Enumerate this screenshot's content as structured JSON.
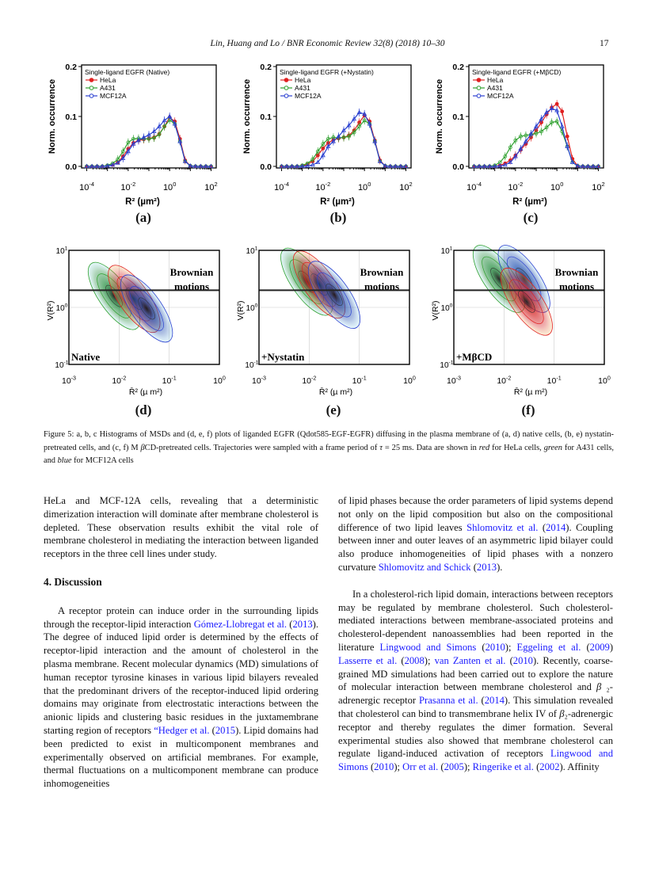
{
  "header": {
    "running_title": "Lin, Huang and Lo / BNR Economic Review 32(8) (2018) 10–30",
    "page_number": "17"
  },
  "colors": {
    "hela": "#e02020",
    "a431": "#2ea02e",
    "mcf12a": "#2a40d0",
    "link": "#1a1aff"
  },
  "chart_data": [
    {
      "type": "line",
      "panel": "(a)",
      "title": "Single-ligand EGFR (Native)",
      "xlabel": "R² (µm²)",
      "ylabel": "Norm. occurrence",
      "xscale": "log",
      "xlim_log10": [
        -4,
        2
      ],
      "ylim": [
        0,
        0.2
      ],
      "x_ticks": [
        {
          "base": "10",
          "exp": "-4"
        },
        {
          "base": "10",
          "exp": "-2"
        },
        {
          "base": "10",
          "exp": "0"
        },
        {
          "base": "10",
          "exp": "2"
        }
      ],
      "y_ticks": [
        "0.0",
        "0.1",
        "0.2"
      ],
      "x_log10": [
        -4,
        -3.75,
        -3.5,
        -3.25,
        -3,
        -2.75,
        -2.5,
        -2.25,
        -2,
        -1.75,
        -1.5,
        -1.25,
        -1,
        -0.75,
        -0.5,
        -0.25,
        0,
        0.25,
        0.5,
        0.75,
        1,
        1.25,
        1.5,
        1.75,
        2
      ],
      "series": [
        {
          "name": "HeLa",
          "marker": "filled-circle",
          "values": [
            0,
            0,
            0,
            0,
            0.001,
            0.003,
            0.008,
            0.02,
            0.035,
            0.047,
            0.052,
            0.054,
            0.056,
            0.058,
            0.065,
            0.08,
            0.098,
            0.09,
            0.055,
            0.012,
            0.001,
            0,
            0,
            0,
            0
          ]
        },
        {
          "name": "A431",
          "marker": "open-circle",
          "values": [
            0,
            0,
            0,
            0,
            0.002,
            0.006,
            0.014,
            0.03,
            0.048,
            0.055,
            0.056,
            0.055,
            0.055,
            0.057,
            0.064,
            0.08,
            0.093,
            0.085,
            0.05,
            0.01,
            0.001,
            0,
            0,
            0,
            0
          ]
        },
        {
          "name": "MCF12A",
          "marker": "open-triangle",
          "values": [
            0,
            0,
            0,
            0,
            0.001,
            0.003,
            0.007,
            0.016,
            0.03,
            0.045,
            0.052,
            0.058,
            0.063,
            0.07,
            0.08,
            0.092,
            0.1,
            0.085,
            0.05,
            0.01,
            0.001,
            0,
            0,
            0,
            0
          ]
        }
      ]
    },
    {
      "type": "line",
      "panel": "(b)",
      "title": "Single-ligand EGFR (+Nystatin)",
      "xlabel": "R² (µm²)",
      "ylabel": "Norm. occurrence",
      "xscale": "log",
      "xlim_log10": [
        -4,
        2
      ],
      "ylim": [
        0,
        0.2
      ],
      "x_ticks": [
        {
          "base": "10",
          "exp": "-4"
        },
        {
          "base": "10",
          "exp": "-2"
        },
        {
          "base": "10",
          "exp": "0"
        },
        {
          "base": "10",
          "exp": "2"
        }
      ],
      "y_ticks": [
        "0.0",
        "0.1",
        "0.2"
      ],
      "x_log10": [
        -4,
        -3.75,
        -3.5,
        -3.25,
        -3,
        -2.75,
        -2.5,
        -2.25,
        -2,
        -1.75,
        -1.5,
        -1.25,
        -1,
        -0.75,
        -0.5,
        -0.25,
        0,
        0.25,
        0.5,
        0.75,
        1,
        1.25,
        1.5,
        1.75,
        2
      ],
      "series": [
        {
          "name": "HeLa",
          "marker": "filled-circle",
          "values": [
            0,
            0,
            0,
            0,
            0.001,
            0.004,
            0.01,
            0.022,
            0.036,
            0.047,
            0.053,
            0.056,
            0.058,
            0.062,
            0.072,
            0.088,
            0.102,
            0.09,
            0.052,
            0.012,
            0.001,
            0,
            0,
            0,
            0
          ]
        },
        {
          "name": "A431",
          "marker": "open-circle",
          "values": [
            0,
            0,
            0,
            0,
            0.002,
            0.006,
            0.014,
            0.03,
            0.045,
            0.055,
            0.058,
            0.057,
            0.058,
            0.06,
            0.068,
            0.08,
            0.092,
            0.085,
            0.05,
            0.01,
            0.001,
            0,
            0,
            0,
            0
          ]
        },
        {
          "name": "MCF12A",
          "marker": "open-triangle",
          "values": [
            0,
            0,
            0,
            0,
            0,
            0.001,
            0.003,
            0.008,
            0.022,
            0.04,
            0.05,
            0.06,
            0.072,
            0.082,
            0.095,
            0.108,
            0.105,
            0.085,
            0.05,
            0.01,
            0.001,
            0,
            0,
            0,
            0
          ]
        }
      ]
    },
    {
      "type": "line",
      "panel": "(c)",
      "title": "Single-ligand EGFR (+MβCD)",
      "xlabel": "R² (µm²)",
      "ylabel": "Norm. occurrence",
      "xscale": "log",
      "xlim_log10": [
        -4,
        2
      ],
      "ylim": [
        0,
        0.2
      ],
      "x_ticks": [
        {
          "base": "10",
          "exp": "-4"
        },
        {
          "base": "10",
          "exp": "-2"
        },
        {
          "base": "10",
          "exp": "0"
        },
        {
          "base": "10",
          "exp": "2"
        }
      ],
      "y_ticks": [
        "0.0",
        "0.1",
        "0.2"
      ],
      "x_log10": [
        -4,
        -3.75,
        -3.5,
        -3.25,
        -3,
        -2.75,
        -2.5,
        -2.25,
        -2,
        -1.75,
        -1.5,
        -1.25,
        -1,
        -0.75,
        -0.5,
        -0.25,
        0,
        0.25,
        0.5,
        0.75,
        1,
        1.25,
        1.5,
        1.75,
        2
      ],
      "series": [
        {
          "name": "HeLa",
          "marker": "filled-circle",
          "values": [
            0,
            0,
            0,
            0,
            0,
            0.002,
            0.006,
            0.012,
            0.022,
            0.033,
            0.045,
            0.058,
            0.072,
            0.088,
            0.104,
            0.118,
            0.125,
            0.11,
            0.06,
            0.015,
            0.001,
            0,
            0,
            0,
            0
          ]
        },
        {
          "name": "A431",
          "marker": "open-circle",
          "values": [
            0,
            0,
            0,
            0,
            0.002,
            0.008,
            0.02,
            0.038,
            0.052,
            0.06,
            0.062,
            0.064,
            0.066,
            0.07,
            0.078,
            0.088,
            0.09,
            0.07,
            0.04,
            0.008,
            0.001,
            0,
            0,
            0,
            0
          ]
        },
        {
          "name": "MCF12A",
          "marker": "open-triangle",
          "values": [
            0,
            0,
            0,
            0,
            0,
            0.001,
            0.003,
            0.008,
            0.02,
            0.035,
            0.05,
            0.065,
            0.08,
            0.095,
            0.108,
            0.116,
            0.112,
            0.08,
            0.04,
            0.008,
            0.001,
            0,
            0,
            0,
            0
          ]
        }
      ]
    },
    {
      "type": "heatmap",
      "panel": "(d)",
      "condition": "Native",
      "annotation": "Brownian motions",
      "xlabel": "R̄² (µ m²)",
      "ylabel": "V(R²)",
      "xlim_log10": [
        -3,
        0
      ],
      "ylim_log10": [
        -1,
        1
      ],
      "brownian_line_log10": 0.3,
      "x_ticks": [
        {
          "base": "10",
          "exp": "-3"
        },
        {
          "base": "10",
          "exp": "-2"
        },
        {
          "base": "10",
          "exp": "-1"
        },
        {
          "base": "10",
          "exp": "0"
        }
      ],
      "y_ticks": [
        {
          "base": "10",
          "exp": "-1"
        },
        {
          "base": "10",
          "exp": "0"
        },
        {
          "base": "10",
          "exp": "1"
        }
      ],
      "density_peaks": [
        {
          "name": "A431",
          "x_log10": -2.1,
          "y_log10": 0.2
        },
        {
          "name": "HeLa",
          "x_log10": -1.7,
          "y_log10": 0.15
        },
        {
          "name": "MCF12A",
          "x_log10": -1.45,
          "y_log10": -0.02
        }
      ]
    },
    {
      "type": "heatmap",
      "panel": "(e)",
      "condition": "+Nystatin",
      "annotation": "Brownian motions",
      "xlabel": "R̄² (µ m²)",
      "ylabel": "V(R²)",
      "xlim_log10": [
        -3,
        0
      ],
      "ylim_log10": [
        -1,
        1
      ],
      "brownian_line_log10": 0.3,
      "x_ticks": [
        {
          "base": "10",
          "exp": "-3"
        },
        {
          "base": "10",
          "exp": "-2"
        },
        {
          "base": "10",
          "exp": "-1"
        },
        {
          "base": "10",
          "exp": "0"
        }
      ],
      "y_ticks": [
        {
          "base": "10",
          "exp": "-1"
        },
        {
          "base": "10",
          "exp": "0"
        },
        {
          "base": "10",
          "exp": "1"
        }
      ],
      "density_peaks": [
        {
          "name": "A431",
          "x_log10": -2.05,
          "y_log10": 0.45
        },
        {
          "name": "HeLa",
          "x_log10": -1.8,
          "y_log10": 0.4
        },
        {
          "name": "MCF12A",
          "x_log10": -1.5,
          "y_log10": 0.22
        }
      ]
    },
    {
      "type": "heatmap",
      "panel": "(f)",
      "condition": "+MβCD",
      "annotation": "Brownian motions",
      "xlabel": "R̄² (µ m²)",
      "ylabel": "V(R²)",
      "xlim_log10": [
        -3,
        0
      ],
      "ylim_log10": [
        -1,
        1
      ],
      "brownian_line_log10": 0.3,
      "x_ticks": [
        {
          "base": "10",
          "exp": "-3"
        },
        {
          "base": "10",
          "exp": "-2"
        },
        {
          "base": "10",
          "exp": "-1"
        },
        {
          "base": "10",
          "exp": "0"
        }
      ],
      "y_ticks": [
        {
          "base": "10",
          "exp": "-1"
        },
        {
          "base": "10",
          "exp": "0"
        },
        {
          "base": "10",
          "exp": "1"
        }
      ],
      "density_peaks": [
        {
          "name": "A431",
          "x_log10": -2.1,
          "y_log10": 0.5
        },
        {
          "name": "MCF12A",
          "x_log10": -1.6,
          "y_log10": 0.5
        },
        {
          "name": "HeLa",
          "x_log10": -1.55,
          "y_log10": 0.1
        }
      ]
    }
  ],
  "caption": [
    {
      "t": "Figure 5: a, b, c Histograms of MSDs and (d, e, f) plots of liganded EGFR (Qdot585-EGF-EGFR) diffusing in the plasma membrane of (a, d) native cells, (b, e) nystatin-pretreated cells, and (c, f) M "
    },
    {
      "t": "β",
      "i": true
    },
    {
      "t": "CD-pretreated cells. Trajectories were sampled with a frame period of "
    },
    {
      "t": "τ",
      "i": true
    },
    {
      "t": " = 25 ms. Data are shown in "
    },
    {
      "t": "red",
      "i": true
    },
    {
      "t": " for HeLa cells, "
    },
    {
      "t": "green",
      "i": true
    },
    {
      "t": " for A431 cells, and "
    },
    {
      "t": "blue",
      "i": true
    },
    {
      "t": " for MCF12A cells"
    }
  ],
  "left_column": {
    "para1": [
      {
        "t": "HeLa and MCF-12A cells, revealing that a deterministic dimerization interaction will dominate after membrane cholesterol is depleted.  These observation results exhibit the vital role of membrane cholesterol in mediating the interaction between liganded receptors in the three cell lines under study."
      }
    ],
    "section_heading": "4.  Discussion",
    "para2": [
      {
        "t": "A receptor protein can induce order in the surrounding lipids through the receptor-lipid interaction "
      },
      {
        "t": "Gómez-Llobregat et al.",
        "link": true
      },
      {
        "t": " ("
      },
      {
        "t": "2013",
        "link": true
      },
      {
        "t": ").  The degree of induced lipid order is determined by the effects of receptor-lipid interaction and the amount of cholesterol in the plasma membrane. Recent molecular dynamics (MD) simulations of human receptor tyrosine kinases in various lipid bilayers revealed that the predominant drivers of the receptor-induced lipid ordering domains may originate from electrostatic interactions between the anionic lipids and clustering basic residues in the juxtamembrane starting region of receptors "
      },
      {
        "t": "“Hedger et al.",
        "link": true
      },
      {
        "t": " ("
      },
      {
        "t": "2015",
        "link": true
      },
      {
        "t": ").  Lipid domains had been predicted to exist in multicomponent membranes and experimentally observed on artificial membranes.  For example, thermal fluctuations on a multicomponent membrane can produce inhomogeneities"
      }
    ]
  },
  "right_column": {
    "para1": [
      {
        "t": "of lipid phases because the order parameters of lipid systems depend not only on the lipid composition but also on the compositional difference of two lipid leaves "
      },
      {
        "t": "Shlomovitz et al.",
        "link": true
      },
      {
        "t": " ("
      },
      {
        "t": "2014",
        "link": true
      },
      {
        "t": ").  Coupling between inner and outer leaves of an asymmetric lipid bilayer could also produce inhomogeneities of lipid phases with a nonzero curvature "
      },
      {
        "t": "Shlomovitz and Schick",
        "link": true
      },
      {
        "t": " ("
      },
      {
        "t": "2013",
        "link": true
      },
      {
        "t": ")."
      }
    ],
    "para2": [
      {
        "t": "In a cholesterol-rich lipid domain, interactions between receptors may be regulated by membrane cholesterol.   Such cholesterol-mediated interactions between membrane-associated proteins and cholesterol-dependent nanoassemblies had been reported in the literature "
      },
      {
        "t": "Lingwood and Simons",
        "link": true
      },
      {
        "t": " ("
      },
      {
        "t": "2010",
        "link": true
      },
      {
        "t": "); "
      },
      {
        "t": "Eggeling et al.",
        "link": true
      },
      {
        "t": " ("
      },
      {
        "t": "2009",
        "link": true
      },
      {
        "t": ") "
      },
      {
        "t": "Lasserre et al.",
        "link": true
      },
      {
        "t": " ("
      },
      {
        "t": "2008",
        "link": true
      },
      {
        "t": "); "
      },
      {
        "t": "van Zanten et al.",
        "link": true
      },
      {
        "t": " ("
      },
      {
        "t": "2010",
        "link": true
      },
      {
        "t": "). Recently, coarse-grained MD simulations had been carried out to explore the nature of molecular interaction between membrane cholesterol and "
      },
      {
        "t": "β",
        "i": true
      },
      {
        "t": " ₂-adrenergic receptor "
      },
      {
        "t": "Prasanna et al.",
        "link": true
      },
      {
        "t": " ("
      },
      {
        "t": "2014",
        "link": true
      },
      {
        "t": "). This simulation revealed that cholesterol can bind to transmembrane helix IV of "
      },
      {
        "t": "β",
        "i": true
      },
      {
        "t": "₂-adrenergic receptor and thereby regulates the dimer formation.   Several experimental studies also showed that membrane cholesterol can regulate ligand-induced activation of receptors "
      },
      {
        "t": "Lingwood and Simons",
        "link": true
      },
      {
        "t": " ("
      },
      {
        "t": "2010",
        "link": true
      },
      {
        "t": "); "
      },
      {
        "t": "Orr et al.",
        "link": true
      },
      {
        "t": " ("
      },
      {
        "t": "2005",
        "link": true
      },
      {
        "t": "); "
      },
      {
        "t": "Ringerike et al.",
        "link": true
      },
      {
        "t": " ("
      },
      {
        "t": "2002",
        "link": true
      },
      {
        "t": ").   Affinity"
      }
    ]
  }
}
